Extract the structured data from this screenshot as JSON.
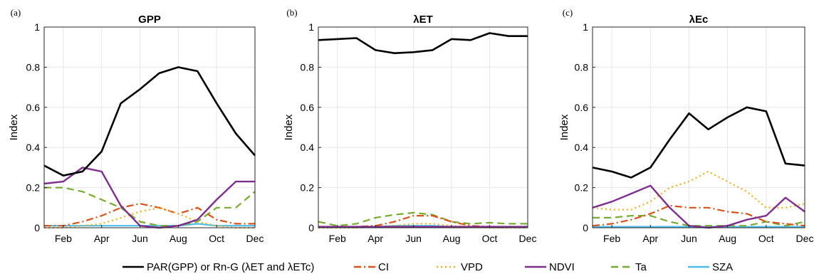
{
  "chart_data": [
    {
      "type": "line",
      "panel_label": "(a)",
      "title": "GPP",
      "ylabel": "Index",
      "xlabel": "",
      "ylim": [
        0,
        1
      ],
      "yticks": [
        0,
        0.2,
        0.4,
        0.6,
        0.8,
        1
      ],
      "ytick_labels": [
        "0",
        "0.2",
        "0.4",
        "0.6",
        "0.8",
        "1"
      ],
      "xlim": [
        1,
        12
      ],
      "xticks": [
        2,
        4,
        6,
        8,
        10,
        12
      ],
      "xtick_labels": [
        "Feb",
        "Apr",
        "Jun",
        "Aug",
        "Oct",
        "Dec"
      ],
      "grid": true,
      "x": [
        1,
        2,
        3,
        4,
        5,
        6,
        7,
        8,
        9,
        10,
        11,
        12
      ],
      "series": [
        {
          "key": "par",
          "values": [
            0.31,
            0.26,
            0.28,
            0.38,
            0.62,
            0.69,
            0.77,
            0.8,
            0.78,
            0.62,
            0.47,
            0.36
          ]
        },
        {
          "key": "ci",
          "values": [
            0.01,
            0.01,
            0.03,
            0.06,
            0.1,
            0.12,
            0.1,
            0.07,
            0.1,
            0.04,
            0.02,
            0.02
          ]
        },
        {
          "key": "vpd",
          "values": [
            0.0,
            0.0,
            0.01,
            0.02,
            0.05,
            0.08,
            0.1,
            0.07,
            0.03,
            0.01,
            0.0,
            0.0
          ]
        },
        {
          "key": "ndvi",
          "values": [
            0.22,
            0.23,
            0.3,
            0.28,
            0.11,
            0.01,
            0.0,
            0.01,
            0.04,
            0.14,
            0.23,
            0.23
          ]
        },
        {
          "key": "ta",
          "values": [
            0.2,
            0.2,
            0.18,
            0.14,
            0.1,
            0.03,
            0.01,
            0.01,
            0.03,
            0.1,
            0.1,
            0.18
          ]
        },
        {
          "key": "sza",
          "values": [
            0.01,
            0.01,
            0.01,
            0.01,
            0.01,
            0.01,
            0.01,
            0.01,
            0.02,
            0.01,
            0.01,
            0.01
          ]
        }
      ]
    },
    {
      "type": "line",
      "panel_label": "(b)",
      "title": "λET",
      "ylabel": "Index",
      "xlabel": "",
      "ylim": [
        0,
        1
      ],
      "yticks": [
        0,
        0.2,
        0.4,
        0.6,
        0.8,
        1
      ],
      "ytick_labels": [
        "0",
        "0.2",
        "0.4",
        "0.6",
        "0.8",
        "1"
      ],
      "xlim": [
        1,
        12
      ],
      "xticks": [
        2,
        4,
        6,
        8,
        10,
        12
      ],
      "xtick_labels": [
        "Feb",
        "Apr",
        "Jun",
        "Aug",
        "Oct",
        "Dec"
      ],
      "grid": true,
      "x": [
        1,
        2,
        3,
        4,
        5,
        6,
        7,
        8,
        9,
        10,
        11,
        12
      ],
      "series": [
        {
          "key": "par",
          "values": [
            0.935,
            0.94,
            0.945,
            0.885,
            0.87,
            0.875,
            0.885,
            0.94,
            0.935,
            0.97,
            0.955,
            0.955
          ]
        },
        {
          "key": "ci",
          "values": [
            0.005,
            0.005,
            0.005,
            0.01,
            0.03,
            0.06,
            0.06,
            0.03,
            0.01,
            0.005,
            0.005,
            0.005
          ]
        },
        {
          "key": "vpd",
          "values": [
            0.0,
            0.0,
            0.0,
            0.005,
            0.01,
            0.02,
            0.02,
            0.01,
            0.005,
            0.0,
            0.0,
            0.0
          ]
        },
        {
          "key": "ndvi",
          "values": [
            0.005,
            0.005,
            0.005,
            0.005,
            0.005,
            0.005,
            0.005,
            0.005,
            0.005,
            0.005,
            0.005,
            0.005
          ]
        },
        {
          "key": "ta",
          "values": [
            0.03,
            0.01,
            0.02,
            0.05,
            0.065,
            0.075,
            0.065,
            0.03,
            0.02,
            0.025,
            0.02,
            0.02
          ]
        },
        {
          "key": "sza",
          "values": [
            0.005,
            0.005,
            0.005,
            0.005,
            0.01,
            0.01,
            0.01,
            0.005,
            0.005,
            0.005,
            0.005,
            0.005
          ]
        }
      ]
    },
    {
      "type": "line",
      "panel_label": "(c)",
      "title": "λEc",
      "ylabel": "Index",
      "xlabel": "",
      "ylim": [
        0,
        1
      ],
      "yticks": [
        0,
        0.2,
        0.4,
        0.6,
        0.8,
        1
      ],
      "ytick_labels": [
        "0",
        "0.2",
        "0.4",
        "0.6",
        "0.8",
        "1"
      ],
      "xlim": [
        1,
        12
      ],
      "xticks": [
        2,
        4,
        6,
        8,
        10,
        12
      ],
      "xtick_labels": [
        "Feb",
        "Apr",
        "Jun",
        "Aug",
        "Oct",
        "Dec"
      ],
      "grid": true,
      "x": [
        1,
        2,
        3,
        4,
        5,
        6,
        7,
        8,
        9,
        10,
        11,
        12
      ],
      "series": [
        {
          "key": "par",
          "values": [
            0.3,
            0.28,
            0.25,
            0.3,
            0.44,
            0.57,
            0.49,
            0.55,
            0.6,
            0.58,
            0.32,
            0.31
          ]
        },
        {
          "key": "ci",
          "values": [
            0.01,
            0.02,
            0.04,
            0.07,
            0.11,
            0.1,
            0.1,
            0.08,
            0.07,
            0.03,
            0.02,
            0.01
          ]
        },
        {
          "key": "vpd",
          "values": [
            0.1,
            0.09,
            0.09,
            0.13,
            0.2,
            0.23,
            0.28,
            0.23,
            0.18,
            0.1,
            0.1,
            0.12
          ]
        },
        {
          "key": "ndvi",
          "values": [
            0.1,
            0.13,
            0.17,
            0.21,
            0.1,
            0.01,
            0.0,
            0.01,
            0.04,
            0.06,
            0.15,
            0.08
          ]
        },
        {
          "key": "ta",
          "values": [
            0.05,
            0.05,
            0.06,
            0.06,
            0.03,
            0.01,
            0.01,
            0.01,
            0.01,
            0.03,
            0.01,
            0.03
          ]
        },
        {
          "key": "sza",
          "values": [
            0.005,
            0.005,
            0.005,
            0.005,
            0.005,
            0.005,
            0.005,
            0.005,
            0.005,
            0.005,
            0.005,
            0.005
          ]
        }
      ]
    }
  ],
  "legend": {
    "placement": "bottom",
    "items": [
      {
        "key": "par",
        "label": "PAR(GPP) or Rn-G (λET and λETc)",
        "color": "#000000",
        "dash": "solid"
      },
      {
        "key": "ci",
        "label": "CI",
        "color": "#D95319",
        "dash": "dashdot"
      },
      {
        "key": "vpd",
        "label": "VPD",
        "color": "#EDB120",
        "dash": "dotted"
      },
      {
        "key": "ndvi",
        "label": "NDVI",
        "color": "#7E2F8E",
        "dash": "solid"
      },
      {
        "key": "ta",
        "label": "Ta",
        "color": "#77AC30",
        "dash": "dashed"
      },
      {
        "key": "sza",
        "label": "SZA",
        "color": "#4DBEEE",
        "dash": "solid"
      }
    ]
  }
}
